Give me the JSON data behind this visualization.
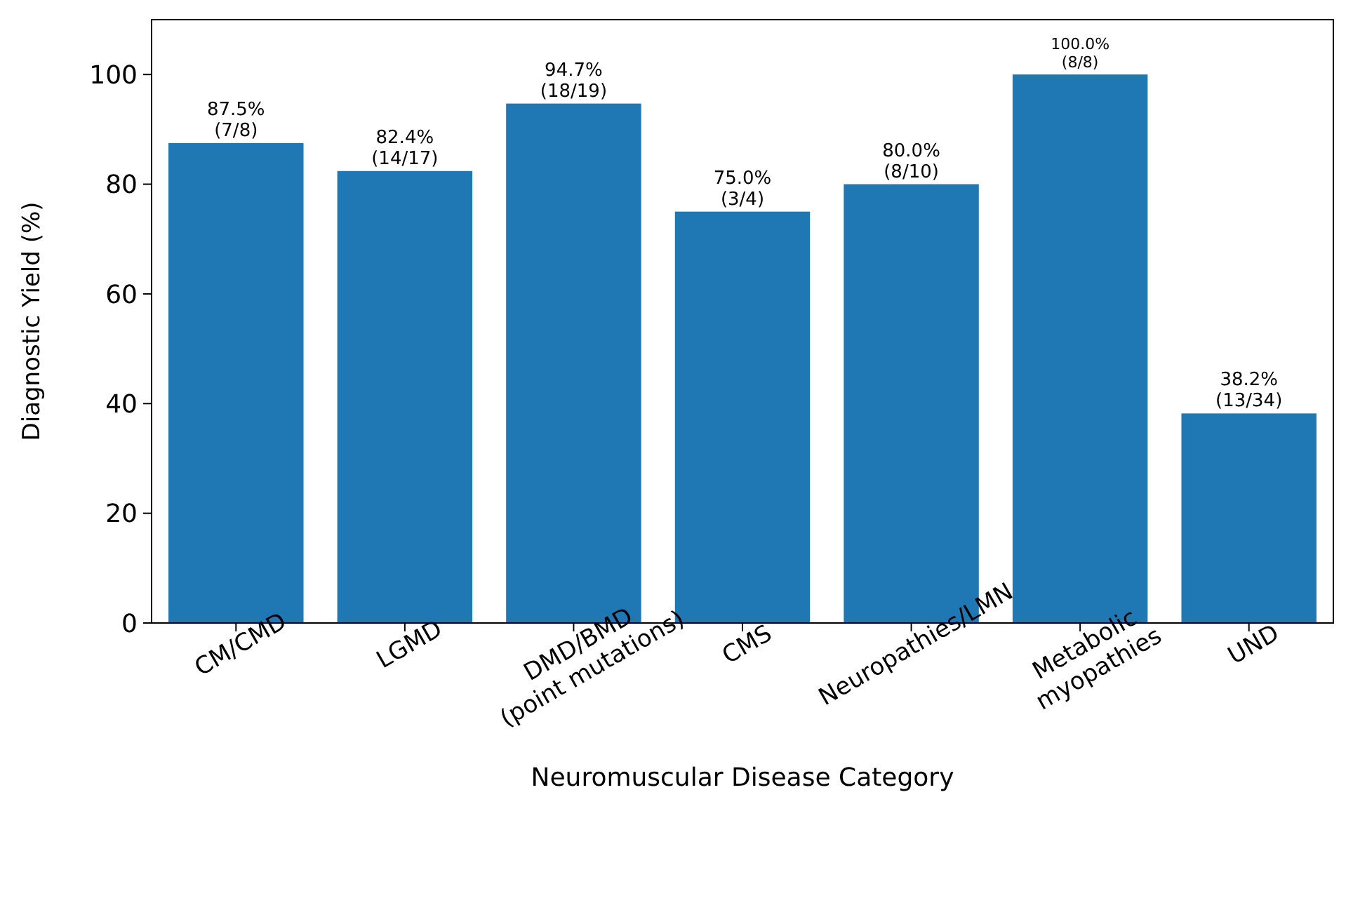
{
  "chart_data": {
    "type": "bar",
    "xlabel": "Neuromuscular Disease Category",
    "ylabel": "Diagnostic Yield (%)",
    "categories": [
      "CM/CMD",
      "LGMD",
      "DMD/BMD\n(point mutations)",
      "CMS",
      "Neuropathies/LMN",
      "Metabolic\nmyopathies",
      "UND"
    ],
    "values": [
      87.5,
      82.4,
      94.7,
      75.0,
      80.0,
      100.0,
      38.2
    ],
    "value_labels": [
      "87.5%\n(7/8)",
      "82.4%\n(14/17)",
      "94.7%\n(18/19)",
      "75.0%\n(3/4)",
      "80.0%\n(8/10)",
      "100.0%\n(8/8)",
      "38.2%\n(13/34)"
    ],
    "color": "#1f77b4",
    "ylim": [
      0,
      110
    ],
    "yticks": [
      0,
      20,
      40,
      60,
      80,
      100
    ],
    "grid": false
  }
}
